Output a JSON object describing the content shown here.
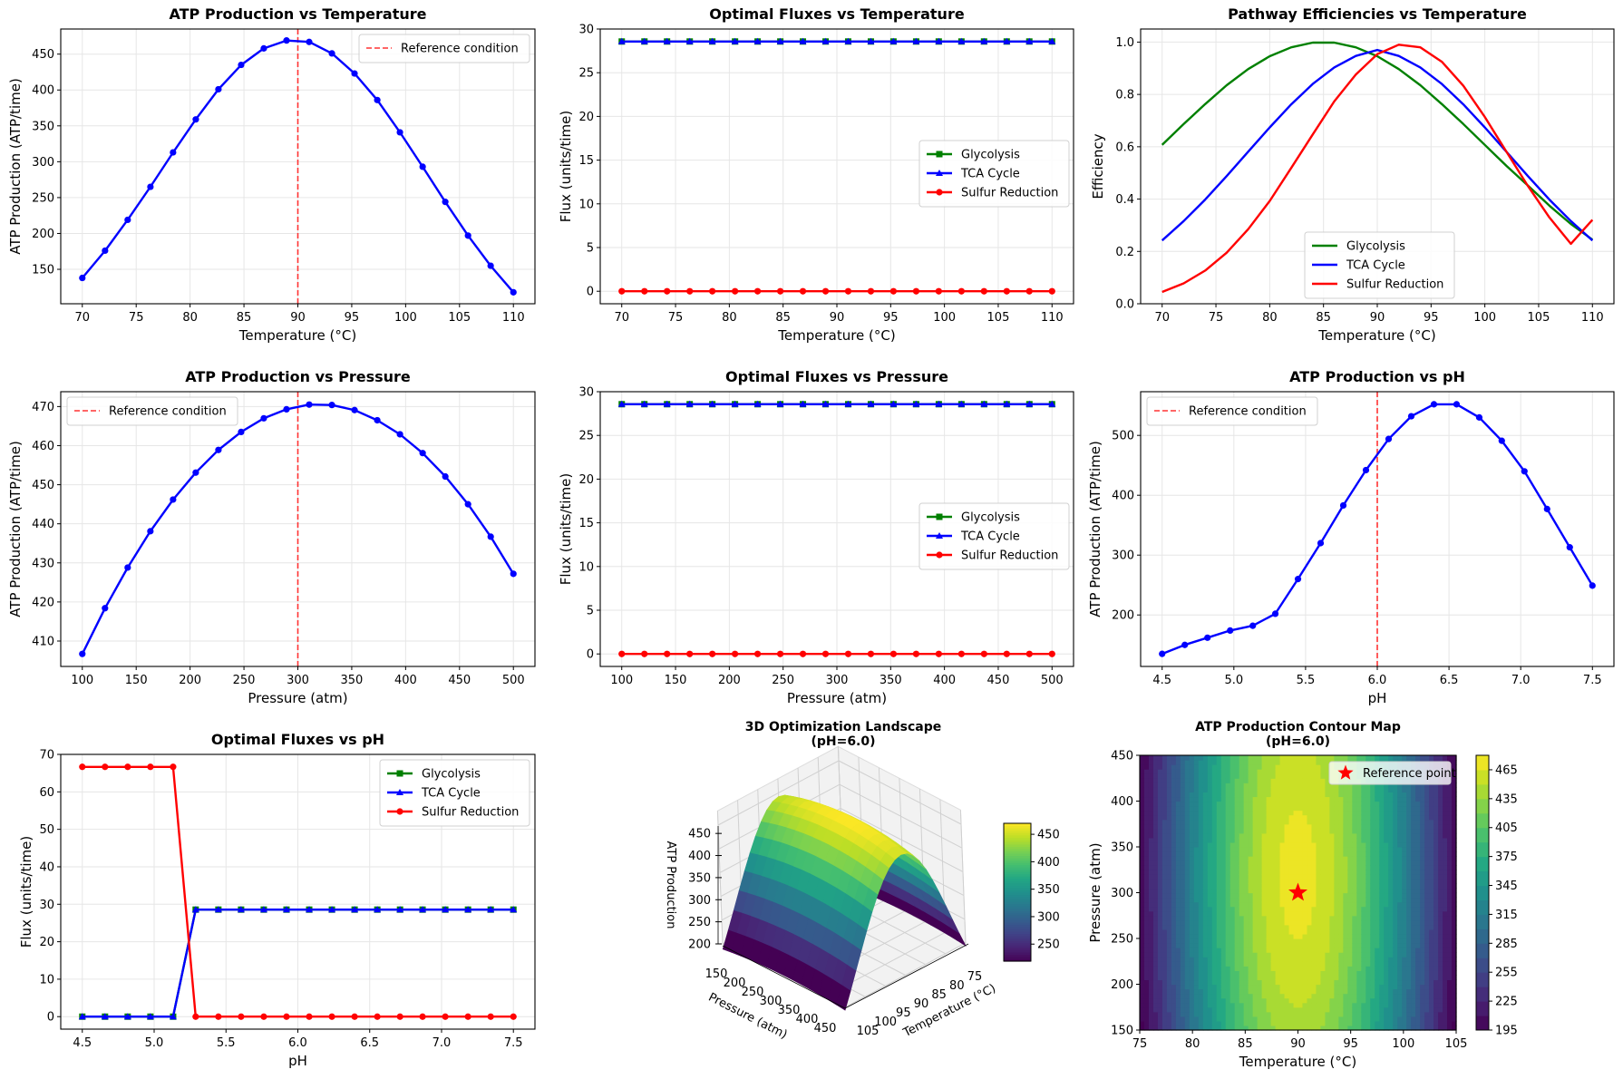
{
  "figure": {
    "reference_label": "Reference condition",
    "legend_labels": [
      "Glycolysis",
      "TCA Cycle",
      "Sulfur Reduction"
    ],
    "colors": {
      "glycolysis": "#008000",
      "tca": "#0000ff",
      "sulfur": "#ff0000",
      "reference": "#ff3333",
      "atp": "#0000ff"
    }
  },
  "chart_data": [
    {
      "id": "atp_temp",
      "type": "line",
      "title": "ATP Production vs Temperature",
      "xlabel": "Temperature (°C)",
      "ylabel": "ATP Production (ATP/time)",
      "xlim": [
        68.0,
        112.0
      ],
      "ylim": [
        102,
        485
      ],
      "xticks": [
        70,
        75,
        80,
        85,
        90,
        95,
        100,
        105,
        110
      ],
      "yticks": [
        150,
        200,
        250,
        300,
        350,
        400,
        450
      ],
      "grid": true,
      "reference_x": 90,
      "legend": "top-right",
      "x": [
        70.0,
        72.11,
        74.21,
        76.32,
        78.42,
        80.53,
        82.63,
        84.74,
        86.84,
        88.95,
        91.05,
        93.16,
        95.26,
        97.37,
        99.47,
        101.58,
        103.68,
        105.79,
        107.89,
        110.0
      ],
      "series": [
        {
          "name": "ATP Production",
          "values": [
            138,
            176,
            219,
            265,
            313,
            359,
            401,
            435,
            458,
            469,
            467,
            451,
            423,
            386,
            341,
            293,
            244,
            197,
            155,
            118
          ]
        }
      ]
    },
    {
      "id": "flux_temp",
      "type": "line",
      "title": "Optimal Fluxes vs Temperature",
      "xlabel": "Temperature (°C)",
      "ylabel": "Flux (units/time)",
      "xlim": [
        68.0,
        112.0
      ],
      "ylim": [
        -1.43,
        30
      ],
      "xticks": [
        70,
        75,
        80,
        85,
        90,
        95,
        100,
        105,
        110
      ],
      "yticks": [
        0,
        5,
        10,
        15,
        20,
        25,
        30
      ],
      "grid": true,
      "legend": "center-right",
      "x": [
        70.0,
        72.11,
        74.21,
        76.32,
        78.42,
        80.53,
        82.63,
        84.74,
        86.84,
        88.95,
        91.05,
        93.16,
        95.26,
        97.37,
        99.47,
        101.58,
        103.68,
        105.79,
        107.89,
        110.0
      ],
      "series": [
        {
          "name": "Glycolysis",
          "values": [
            28.57,
            28.57,
            28.57,
            28.57,
            28.57,
            28.57,
            28.57,
            28.57,
            28.57,
            28.57,
            28.57,
            28.57,
            28.57,
            28.57,
            28.57,
            28.57,
            28.57,
            28.57,
            28.57,
            28.57
          ]
        },
        {
          "name": "TCA Cycle",
          "values": [
            28.57,
            28.57,
            28.57,
            28.57,
            28.57,
            28.57,
            28.57,
            28.57,
            28.57,
            28.57,
            28.57,
            28.57,
            28.57,
            28.57,
            28.57,
            28.57,
            28.57,
            28.57,
            28.57,
            28.57
          ]
        },
        {
          "name": "Sulfur Reduction",
          "values": [
            0,
            0,
            0,
            0,
            0,
            0,
            0,
            0,
            0,
            0,
            0,
            0,
            0,
            0,
            0,
            0,
            0,
            0,
            0,
            0
          ]
        }
      ]
    },
    {
      "id": "eff_temp",
      "type": "line",
      "title": "Pathway Efficiencies vs Temperature",
      "xlabel": "Temperature (°C)",
      "ylabel": "Efficiency",
      "xlim": [
        68.0,
        112.0
      ],
      "ylim": [
        0.0,
        1.05
      ],
      "xticks": [
        70,
        75,
        80,
        85,
        90,
        95,
        100,
        105,
        110
      ],
      "yticks": [
        0.0,
        0.2,
        0.4,
        0.6,
        0.8,
        1.0
      ],
      "grid": true,
      "legend": "lower-center",
      "x": [
        70,
        72,
        74,
        76,
        78,
        80,
        82,
        84,
        86,
        88,
        90,
        92,
        94,
        96,
        98,
        100,
        102,
        104,
        106,
        108,
        110
      ],
      "series": [
        {
          "name": "Glycolysis",
          "values": [
            0.607,
            0.687,
            0.763,
            0.835,
            0.897,
            0.946,
            0.98,
            0.998,
            0.998,
            0.98,
            0.946,
            0.897,
            0.835,
            0.763,
            0.687,
            0.607,
            0.527,
            0.452,
            0.375,
            0.305,
            0.245
          ]
        },
        {
          "name": "TCA Cycle",
          "values": [
            0.242,
            0.316,
            0.398,
            0.488,
            0.581,
            0.674,
            0.762,
            0.84,
            0.903,
            0.947,
            0.97,
            0.947,
            0.903,
            0.84,
            0.762,
            0.674,
            0.581,
            0.488,
            0.398,
            0.316,
            0.242
          ]
        },
        {
          "name": "Sulfur Reduction",
          "values": [
            0.045,
            0.078,
            0.127,
            0.195,
            0.285,
            0.393,
            0.519,
            0.647,
            0.773,
            0.876,
            0.954,
            0.99,
            0.98,
            0.925,
            0.833,
            0.714,
            0.581,
            0.45,
            0.33,
            0.229,
            0.321
          ]
        }
      ]
    },
    {
      "id": "atp_pressure",
      "type": "line",
      "title": "ATP Production vs Pressure",
      "xlabel": "Pressure (atm)",
      "ylabel": "ATP Production (ATP/time)",
      "xlim": [
        80,
        520
      ],
      "ylim": [
        403.5,
        473.8
      ],
      "xticks": [
        100,
        150,
        200,
        250,
        300,
        350,
        400,
        450,
        500
      ],
      "yticks": [
        410,
        420,
        430,
        440,
        450,
        460,
        470
      ],
      "grid": true,
      "reference_x": 300,
      "legend": "top-left",
      "x": [
        100.0,
        121.05,
        142.11,
        163.16,
        184.21,
        205.26,
        226.32,
        247.37,
        268.42,
        289.47,
        310.53,
        331.58,
        352.63,
        373.68,
        394.74,
        415.79,
        436.84,
        457.89,
        478.95,
        500.0
      ],
      "series": [
        {
          "name": "ATP Production",
          "values": [
            406.7,
            418.4,
            428.8,
            438.1,
            446.2,
            453.1,
            458.9,
            463.5,
            467.0,
            469.3,
            470.5,
            470.4,
            469.1,
            466.5,
            462.9,
            458.1,
            452.1,
            445.0,
            436.7,
            427.2
          ]
        }
      ]
    },
    {
      "id": "flux_pressure",
      "type": "line",
      "title": "Optimal Fluxes vs Pressure",
      "xlabel": "Pressure (atm)",
      "ylabel": "Flux (units/time)",
      "xlim": [
        80,
        520
      ],
      "ylim": [
        -1.43,
        30
      ],
      "xticks": [
        100,
        150,
        200,
        250,
        300,
        350,
        400,
        450,
        500
      ],
      "yticks": [
        0,
        5,
        10,
        15,
        20,
        25,
        30
      ],
      "grid": true,
      "legend": "center-right",
      "x": [
        100.0,
        121.05,
        142.11,
        163.16,
        184.21,
        205.26,
        226.32,
        247.37,
        268.42,
        289.47,
        310.53,
        331.58,
        352.63,
        373.68,
        394.74,
        415.79,
        436.84,
        457.89,
        478.95,
        500.0
      ],
      "series": [
        {
          "name": "Glycolysis",
          "values": [
            28.57,
            28.57,
            28.57,
            28.57,
            28.57,
            28.57,
            28.57,
            28.57,
            28.57,
            28.57,
            28.57,
            28.57,
            28.57,
            28.57,
            28.57,
            28.57,
            28.57,
            28.57,
            28.57,
            28.57
          ]
        },
        {
          "name": "TCA Cycle",
          "values": [
            28.57,
            28.57,
            28.57,
            28.57,
            28.57,
            28.57,
            28.57,
            28.57,
            28.57,
            28.57,
            28.57,
            28.57,
            28.57,
            28.57,
            28.57,
            28.57,
            28.57,
            28.57,
            28.57,
            28.57
          ]
        },
        {
          "name": "Sulfur Reduction",
          "values": [
            0,
            0,
            0,
            0,
            0,
            0,
            0,
            0,
            0,
            0,
            0,
            0,
            0,
            0,
            0,
            0,
            0,
            0,
            0,
            0
          ]
        }
      ]
    },
    {
      "id": "atp_ph",
      "type": "line",
      "title": "ATP Production vs pH",
      "xlabel": "pH",
      "ylabel": "ATP Production (ATP/time)",
      "xlim": [
        4.35,
        7.65
      ],
      "ylim": [
        114,
        573
      ],
      "xticks": [
        4.5,
        5.0,
        5.5,
        6.0,
        6.5,
        7.0,
        7.5
      ],
      "yticks": [
        200,
        300,
        400,
        500
      ],
      "grid": true,
      "reference_x": 6.0,
      "legend": "top-left",
      "x": [
        4.5,
        4.658,
        4.816,
        4.974,
        5.132,
        5.289,
        5.447,
        5.605,
        5.763,
        5.921,
        6.079,
        6.237,
        6.395,
        6.553,
        6.711,
        6.868,
        7.026,
        7.184,
        7.342,
        7.5
      ],
      "series": [
        {
          "name": "ATP Production",
          "values": [
            135,
            150,
            162,
            174,
            182,
            202,
            260,
            320,
            383,
            442,
            494,
            532,
            552,
            552,
            530,
            491,
            440,
            377,
            313,
            249
          ]
        }
      ]
    },
    {
      "id": "flux_ph",
      "type": "line",
      "title": "Optimal Fluxes vs pH",
      "xlabel": "pH",
      "ylabel": "Flux (units/time)",
      "xlim": [
        4.35,
        7.65
      ],
      "ylim": [
        -3.33,
        70
      ],
      "xticks": [
        4.5,
        5.0,
        5.5,
        6.0,
        6.5,
        7.0,
        7.5
      ],
      "yticks": [
        0,
        10,
        20,
        30,
        40,
        50,
        60,
        70
      ],
      "grid": true,
      "legend": "top-right",
      "x": [
        4.5,
        4.658,
        4.816,
        4.974,
        5.132,
        5.289,
        5.447,
        5.605,
        5.763,
        5.921,
        6.079,
        6.237,
        6.395,
        6.553,
        6.711,
        6.868,
        7.026,
        7.184,
        7.342,
        7.5
      ],
      "series": [
        {
          "name": "Glycolysis",
          "values": [
            0,
            0,
            0,
            0,
            0,
            28.57,
            28.57,
            28.57,
            28.57,
            28.57,
            28.57,
            28.57,
            28.57,
            28.57,
            28.57,
            28.57,
            28.57,
            28.57,
            28.57,
            28.57
          ]
        },
        {
          "name": "TCA Cycle",
          "values": [
            0,
            0,
            0,
            0,
            0,
            28.57,
            28.57,
            28.57,
            28.57,
            28.57,
            28.57,
            28.57,
            28.57,
            28.57,
            28.57,
            28.57,
            28.57,
            28.57,
            28.57,
            28.57
          ]
        },
        {
          "name": "Sulfur Reduction",
          "values": [
            66.67,
            66.67,
            66.67,
            66.67,
            66.67,
            0,
            0,
            0,
            0,
            0,
            0,
            0,
            0,
            0,
            0,
            0,
            0,
            0,
            0,
            0
          ]
        }
      ]
    },
    {
      "id": "surface3d",
      "type": "surface",
      "title": "3D Optimization Landscape",
      "subtitle": "(pH=6.0)",
      "xlabel": "Temperature (°C)",
      "ylabel": "Pressure (atm)",
      "zlabel": "ATP Production",
      "xticks": [
        75,
        80,
        85,
        90,
        95,
        100,
        105
      ],
      "yticks": [
        150,
        200,
        250,
        300,
        350,
        400,
        450
      ],
      "zticks": [
        200,
        250,
        300,
        350,
        400,
        450
      ],
      "colormap": "viridis",
      "colorbar_ticks": [
        250,
        300,
        350,
        400,
        450
      ],
      "zrange": [
        219,
        470
      ]
    },
    {
      "id": "contour",
      "type": "heatmap",
      "title": "ATP Production Contour Map",
      "subtitle": "(pH=6.0)",
      "xlabel": "Temperature (°C)",
      "ylabel": "Pressure (atm)",
      "xlim": [
        75,
        105
      ],
      "ylim": [
        150,
        450
      ],
      "xticks": [
        75,
        80,
        85,
        90,
        95,
        100,
        105
      ],
      "yticks": [
        150,
        200,
        250,
        300,
        350,
        400,
        450
      ],
      "colormap": "viridis",
      "levels_min": 195,
      "levels_max": 480,
      "levels_step": 15,
      "colorbar_ticks": [
        195,
        225,
        255,
        285,
        315,
        345,
        375,
        405,
        435,
        465
      ],
      "reference_point": {
        "x": 90,
        "y": 300,
        "label": "Reference point"
      },
      "legend": "top-right"
    }
  ]
}
